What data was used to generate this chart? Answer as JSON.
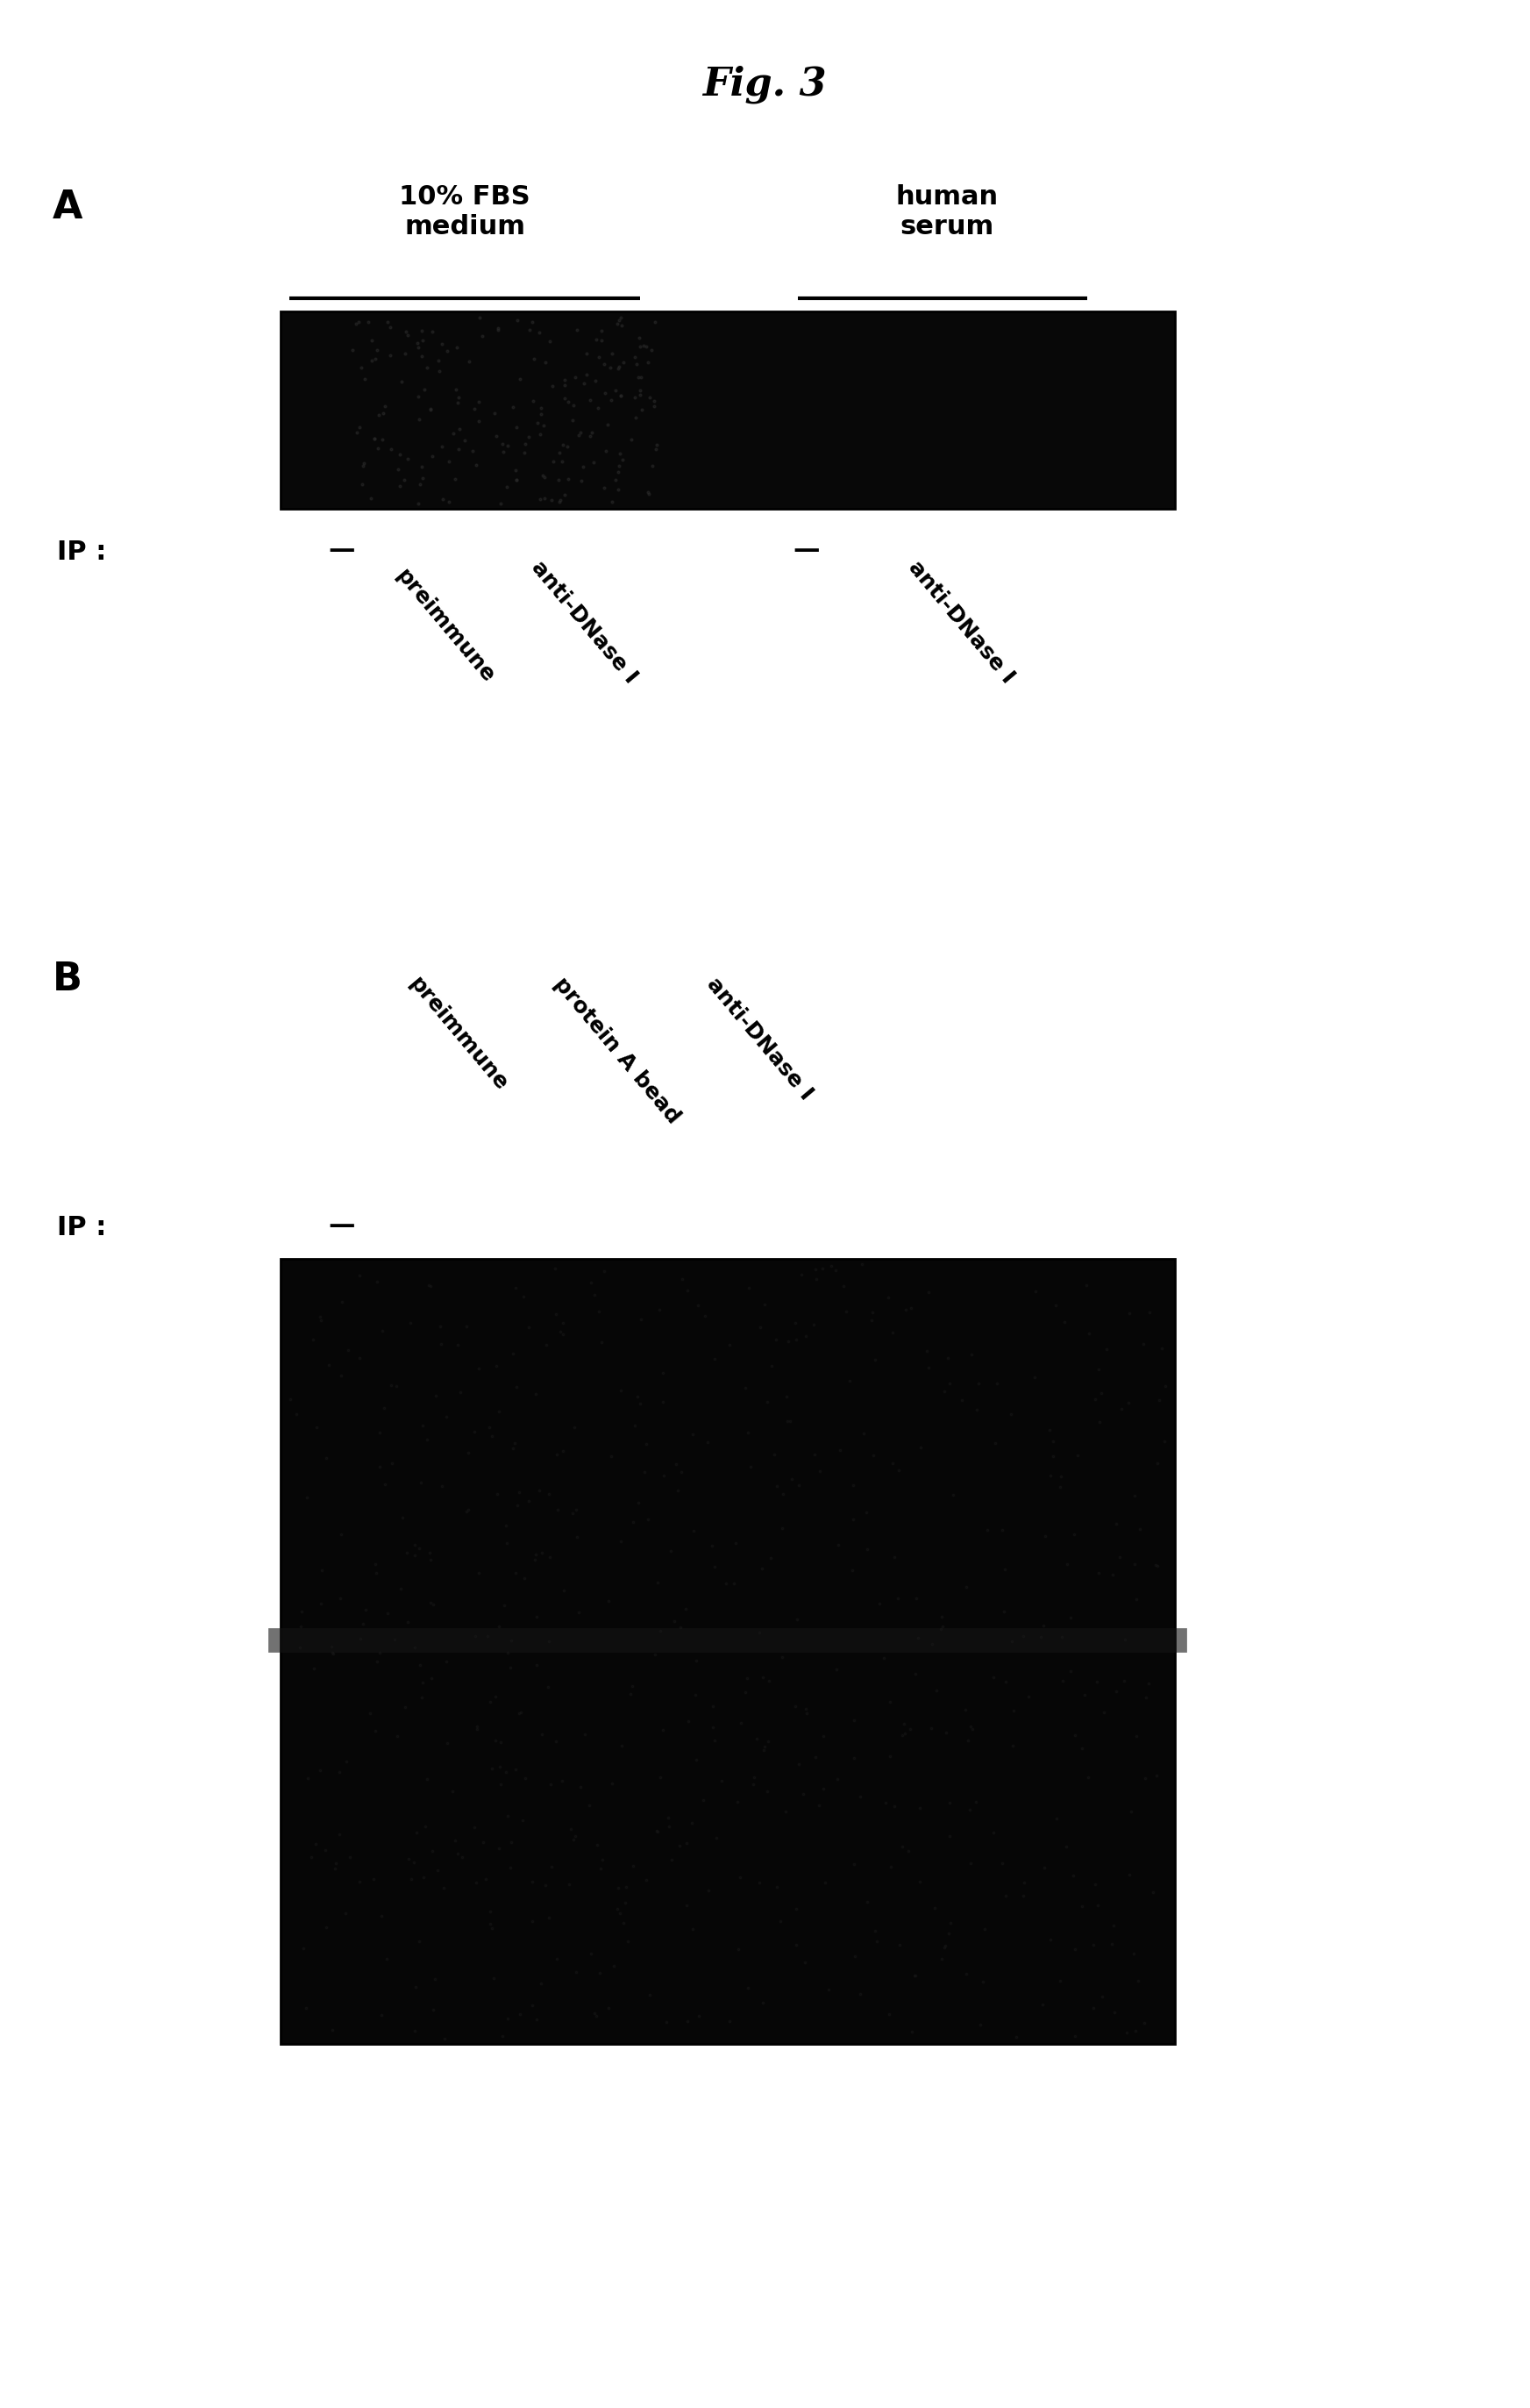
{
  "title": "Fig. 3",
  "title_fontsize": 32,
  "title_fontstyle": "italic",
  "title_fontweight": "bold",
  "background_color": "#ffffff",
  "panel_A_label": "A",
  "panel_B_label": "B",
  "panel_A_header_left": "10% FBS\nmedium",
  "panel_A_header_right": "human\nserum",
  "panel_A_ip_label": "IP :",
  "panel_B_ip_label": "IP :",
  "font_size_ip": 22,
  "font_size_panel": 32,
  "font_size_rotated": 18,
  "font_size_header": 22
}
